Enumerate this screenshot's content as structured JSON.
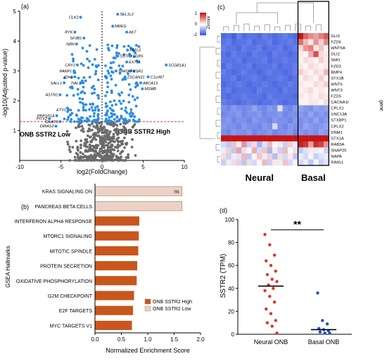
{
  "panels": {
    "a": "(a)",
    "b": "(b)",
    "c": "(c)",
    "d": "(d)"
  },
  "chart_data": [
    {
      "type": "scatter",
      "panel": "a",
      "xlabel": "log2(FoldChange)",
      "ylabel": "-log10(Adjusted p-value)",
      "xlim": [
        -10,
        10
      ],
      "ylim": [
        0,
        5
      ],
      "xticks": [
        -10,
        -5,
        0,
        5,
        10
      ],
      "yticks": [
        1,
        2,
        3,
        4,
        5
      ],
      "threshold_y": 1.3,
      "region_labels": {
        "low": "ONB SSTR2 Low",
        "high": "ONB SSTR2 High"
      },
      "colors": {
        "significant": "#2b8ce6",
        "nonsignificant": "#6b6b6b",
        "threshold": "#e0291d"
      },
      "labeled_genes": [
        {
          "name": "CLK2",
          "x": -2.6,
          "y": 4.8
        },
        {
          "name": "RYK",
          "x": -3.3,
          "y": 4.3
        },
        {
          "name": "SF3B1",
          "x": -2.2,
          "y": 4.1
        },
        {
          "name": "NBN",
          "x": -3.1,
          "y": 3.9
        },
        {
          "name": "CRY2",
          "x": -3.0,
          "y": 3.2
        },
        {
          "name": "PARP1",
          "x": -3.4,
          "y": 3.0
        },
        {
          "name": "IDH1",
          "x": -3.3,
          "y": 2.8
        },
        {
          "name": "SALL1",
          "x": -4.6,
          "y": 2.6
        },
        {
          "name": "TIAL1",
          "x": -2.3,
          "y": 2.6
        },
        {
          "name": "ASTN1",
          "x": -5.1,
          "y": 2.2
        },
        {
          "name": "ETV1",
          "x": -4.1,
          "y": 1.7
        },
        {
          "name": "PPP1R1A",
          "x": -5.5,
          "y": 1.5
        },
        {
          "name": "PITX2",
          "x": -6.4,
          "y": 1.4
        },
        {
          "name": "GNAT3",
          "x": -5.1,
          "y": 1.3
        },
        {
          "name": "DIRAS3",
          "x": -5.6,
          "y": 1.15
        },
        {
          "name": "SEL1L2",
          "x": 1.9,
          "y": 4.9
        },
        {
          "name": "MREG",
          "x": 1.3,
          "y": 4.5
        },
        {
          "name": "AK7",
          "x": 3.0,
          "y": 4.3
        },
        {
          "name": "PATL2",
          "x": 3.1,
          "y": 3.7
        },
        {
          "name": "SSTR2",
          "x": 1.9,
          "y": 3.5
        },
        {
          "name": "LGR5",
          "x": 3.5,
          "y": 3.5
        },
        {
          "name": "EXTL1",
          "x": 3.0,
          "y": 3.3
        },
        {
          "name": "ESR1",
          "x": 3.5,
          "y": 3.0
        },
        {
          "name": "SPATA7",
          "x": 1.7,
          "y": 3.0
        },
        {
          "name": "ZSCAN31",
          "x": 2.8,
          "y": 2.8
        },
        {
          "name": "SCGB1A1",
          "x": 7.8,
          "y": 3.2
        },
        {
          "name": "C1orf87",
          "x": 5.6,
          "y": 2.8
        },
        {
          "name": "ABCA13",
          "x": 4.7,
          "y": 2.6
        },
        {
          "name": "MSMB",
          "x": 4.9,
          "y": 2.4
        }
      ]
    },
    {
      "type": "bar",
      "panel": "b",
      "orientation": "horizontal",
      "title": "",
      "xlabel": "Normalized Enrichment Score",
      "ylabel": "GSEA Hallmarks",
      "xlim": [
        0,
        2.0
      ],
      "xticks": [
        "0.0",
        "0.5",
        "1.0",
        "1.5",
        "2.0"
      ],
      "categories": [
        "KRAS SIGNALING DN",
        "PANCREAS BETA CELLS",
        "INTERFERON ALPHA RESPONSE",
        "MTORC1 SIGNALING",
        "MITOTIC SPINDLE",
        "PROTEIN SECRETION",
        "OXIDATIVE PHOSPHORYLATION",
        "G2M CHECKPOINT",
        "E2F TARGETS",
        "MYC TARGETS V1"
      ],
      "values": [
        1.65,
        1.65,
        0.84,
        0.83,
        0.82,
        0.8,
        0.79,
        0.74,
        0.72,
        0.7
      ],
      "group": [
        "low",
        "low",
        "high",
        "high",
        "high",
        "high",
        "high",
        "high",
        "high",
        "high"
      ],
      "annotations": {
        "KRAS SIGNALING DN": "ns"
      },
      "legend": [
        {
          "name": "ONB SSTR2 High",
          "color": "#c8561d"
        },
        {
          "name": "ONB SSTR2 Low",
          "color": "#ecd2c4"
        }
      ],
      "legend_placement": "bottom-right"
    },
    {
      "type": "heatmap",
      "panel": "c",
      "colorbar_label": "Zscore",
      "colorbar_range": [
        -2,
        2
      ],
      "colorbar_ticks": [
        "2",
        "0",
        "-2"
      ],
      "row_axis_label": "gene",
      "rows": [
        "GLI3",
        "FZD6",
        "WNT5A",
        "GLI2",
        "SMO",
        "FZD2",
        "BMP4",
        "STX1B",
        "WNT6",
        "WNT3",
        "FZD5",
        "CACNA1I",
        "CPLX1",
        "UNC13A",
        "STXBP1",
        "CPLX2",
        "DNM1",
        "STX1A",
        "RAB3A",
        "SNAP25",
        "NAPA",
        "RIMS1"
      ],
      "groups": [
        {
          "name": "Neural",
          "columns": 15
        },
        {
          "name": "Basal",
          "columns": 6
        }
      ],
      "values": [
        [
          -1.6,
          -1.5,
          -1.7,
          -1.4,
          -1.6,
          -1.5,
          -1.5,
          -1.6,
          -1.4,
          -1.5,
          -1.6,
          -1.5,
          -1.4,
          -1.5,
          -1.6,
          2.0,
          1.3,
          1.0,
          0.8,
          1.1,
          1.4
        ],
        [
          -1.5,
          -1.4,
          -1.6,
          -1.5,
          -1.5,
          -1.4,
          -1.6,
          -1.5,
          -1.5,
          -1.4,
          -1.6,
          -1.5,
          -1.5,
          -1.4,
          -1.5,
          1.2,
          0.6,
          0.2,
          0.9,
          0.4,
          1.0
        ],
        [
          -1.4,
          -1.5,
          -1.5,
          -1.6,
          -1.4,
          -1.5,
          -1.5,
          -1.4,
          -1.6,
          -1.5,
          -1.5,
          -1.4,
          -1.6,
          -1.5,
          -1.4,
          0.3,
          0.9,
          1.1,
          0.2,
          0.5,
          0.1
        ],
        [
          -1.5,
          -1.6,
          -1.4,
          -1.5,
          -1.5,
          -1.6,
          -1.4,
          -1.5,
          -1.5,
          -1.6,
          -1.4,
          -1.5,
          -1.5,
          -1.6,
          -1.5,
          0.2,
          0.1,
          0.7,
          1.5,
          0.3,
          0.2
        ],
        [
          -1.5,
          -1.5,
          -1.5,
          -1.4,
          -1.6,
          -1.5,
          -1.5,
          -1.5,
          -1.4,
          -1.6,
          -1.5,
          -1.5,
          -1.4,
          -1.5,
          -1.5,
          0.1,
          0.3,
          0.2,
          0.1,
          0.4,
          0.2
        ],
        [
          -1.6,
          -1.4,
          -1.5,
          -1.5,
          -1.5,
          -1.4,
          -1.6,
          -1.5,
          -1.5,
          -1.5,
          -1.4,
          -1.6,
          -1.5,
          -1.5,
          -1.4,
          0.2,
          0.1,
          0.3,
          0.2,
          0.1,
          0.2
        ],
        [
          -1.4,
          -1.5,
          -1.6,
          -1.5,
          -1.4,
          -1.5,
          -1.5,
          -1.6,
          -1.5,
          -1.4,
          -1.5,
          -1.5,
          -1.6,
          -1.5,
          -1.4,
          0.4,
          0.2,
          0.1,
          0.3,
          0.2,
          0.6
        ],
        [
          -1.5,
          -1.5,
          -1.4,
          -1.6,
          -1.5,
          -1.5,
          -1.4,
          -1.5,
          -1.6,
          -1.5,
          -1.5,
          -1.4,
          -1.5,
          -1.6,
          -1.5,
          0.1,
          0.3,
          0.2,
          0.1,
          0.4,
          0.1
        ],
        [
          -1.6,
          -1.5,
          -1.5,
          -1.4,
          -1.5,
          -1.6,
          -1.5,
          -1.5,
          -1.4,
          -1.5,
          -1.6,
          -1.5,
          -1.5,
          -1.4,
          -1.5,
          0.2,
          0.1,
          0.1,
          0.3,
          0.2,
          0.4
        ],
        [
          -1.5,
          -1.4,
          -1.6,
          -1.5,
          -1.5,
          -1.5,
          -1.6,
          -1.4,
          -1.5,
          -1.5,
          -1.5,
          -1.6,
          -1.4,
          -1.5,
          -1.5,
          0.1,
          0.2,
          0.3,
          0.1,
          0.2,
          0.1
        ],
        [
          -1.5,
          -1.6,
          -1.5,
          -1.5,
          -1.4,
          -1.5,
          -1.5,
          -1.5,
          -1.6,
          -1.4,
          -1.5,
          -1.5,
          -1.5,
          -1.5,
          -1.6,
          0.2,
          0.1,
          0.2,
          0.1,
          0.3,
          0.2
        ],
        [
          -1.4,
          -1.5,
          -1.5,
          -1.6,
          -1.5,
          -1.4,
          -1.5,
          -1.6,
          -1.5,
          -1.5,
          -1.4,
          -1.5,
          -1.6,
          -1.5,
          -1.5,
          0.1,
          0.1,
          0.2,
          0.2,
          0.1,
          0.3
        ],
        [
          -1.2,
          -1.3,
          -1.1,
          -1.2,
          -1.3,
          -1.2,
          -1.0,
          -1.2,
          -1.3,
          -1.1,
          -1.2,
          -0.3,
          -1.2,
          -1.3,
          -1.1,
          -1.0,
          -1.1,
          -1.2,
          -1.0,
          -1.1,
          -1.0
        ],
        [
          -1.3,
          -1.2,
          -1.2,
          -1.1,
          -1.3,
          -1.2,
          -1.2,
          -1.1,
          -1.3,
          -1.2,
          -1.2,
          -1.1,
          -1.3,
          -1.2,
          -1.2,
          -1.1,
          -1.2,
          -1.0,
          -1.2,
          -1.1,
          -1.2
        ],
        [
          -1.2,
          -1.1,
          -1.3,
          -1.2,
          -1.2,
          -1.3,
          -1.1,
          -1.2,
          -1.2,
          -1.3,
          -1.1,
          -1.2,
          -1.2,
          -1.3,
          -1.1,
          -1.2,
          -1.1,
          -1.2,
          -1.0,
          -1.2,
          -1.1
        ],
        [
          -1.1,
          -1.2,
          -1.2,
          -1.3,
          -1.1,
          -1.2,
          -1.2,
          -1.3,
          -1.1,
          -1.2,
          -0.4,
          -1.2,
          -1.3,
          -1.1,
          -1.2,
          -1.2,
          -1.0,
          -1.1,
          -1.2,
          -1.1,
          -1.0
        ],
        [
          -1.2,
          -1.3,
          -1.1,
          -1.2,
          -1.2,
          -1.1,
          -1.3,
          -1.2,
          -1.2,
          -1.1,
          -1.3,
          -1.2,
          -1.2,
          -1.1,
          -1.3,
          -1.1,
          -1.2,
          -1.1,
          -1.2,
          -1.0,
          -1.1
        ],
        [
          2.0,
          2.0,
          2.0,
          2.0,
          2.0,
          2.0,
          2.0,
          2.0,
          2.0,
          2.0,
          2.0,
          2.0,
          2.0,
          2.0,
          2.0,
          2.0,
          2.0,
          2.0,
          2.0,
          2.0,
          2.0
        ],
        [
          -0.4,
          -0.6,
          0.5,
          -0.2,
          0.9,
          -0.5,
          0.3,
          -0.8,
          -0.3,
          0.6,
          -0.1,
          0.2,
          -0.5,
          0.4,
          -0.2,
          1.9,
          1.7,
          0.8,
          1.8,
          1.6,
          0.9
        ],
        [
          -0.2,
          0.4,
          -0.6,
          0.8,
          -0.3,
          0.1,
          0.7,
          -0.4,
          0.5,
          -0.8,
          0.2,
          -0.5,
          0.6,
          -0.1,
          0.3,
          -0.6,
          -0.3,
          0.2,
          -0.2,
          0.1,
          -0.5
        ],
        [
          0.3,
          -0.5,
          0.2,
          -0.3,
          0.6,
          -0.6,
          0.1,
          0.5,
          -0.2,
          0.4,
          -0.7,
          0.3,
          -0.4,
          0.2,
          -0.6,
          -0.2,
          -0.4,
          -0.1,
          -0.5,
          -0.3,
          -0.2
        ],
        [
          -0.5,
          0.2,
          -0.3,
          0.4,
          -0.6,
          0.3,
          -0.4,
          0.1,
          0.6,
          -0.5,
          0.2,
          -0.2,
          0.5,
          -0.4,
          0.1,
          -0.4,
          -0.2,
          -0.6,
          -0.1,
          -0.5,
          -0.3
        ]
      ]
    },
    {
      "type": "scatter",
      "panel": "d",
      "ylabel": "SSTR2 (TPM)",
      "ylim": [
        0,
        100
      ],
      "yticks": [
        "0",
        "20",
        "40",
        "60",
        "80",
        "100"
      ],
      "categories": [
        "Neural ONB",
        "Basal ONB"
      ],
      "significance": "**",
      "series": [
        {
          "name": "Neural ONB",
          "color": "#e63026",
          "median": 42,
          "values": [
            87,
            78,
            69,
            64,
            60,
            55,
            52,
            48,
            46,
            43,
            40,
            38,
            33,
            28,
            22,
            18,
            12,
            10,
            7,
            1
          ]
        },
        {
          "name": "Basal ONB",
          "color": "#1f4fc9",
          "median": 4,
          "values": [
            36,
            12,
            9,
            5,
            4,
            3,
            2,
            1,
            1
          ]
        }
      ]
    }
  ]
}
